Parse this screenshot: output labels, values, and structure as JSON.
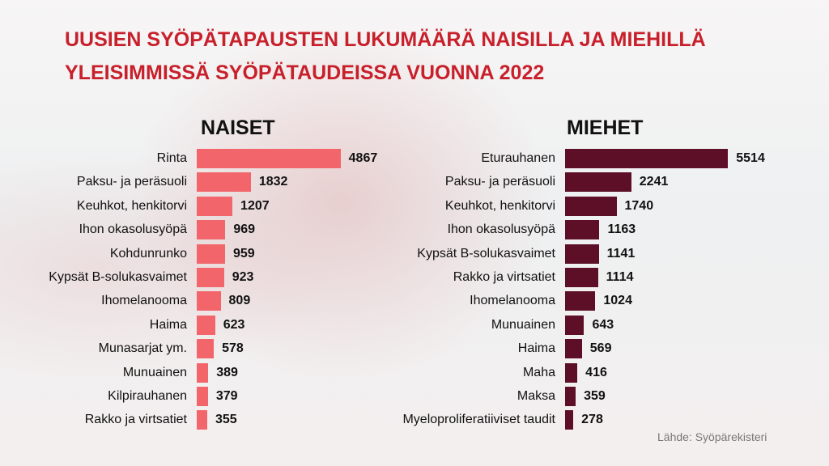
{
  "title": [
    "UUSIEN SYÖPÄTAPAUSTEN LUKUMÄÄRÄ NAISILLA JA MIEHILLÄ",
    "YLEISIMMISSÄ SYÖPÄTAUDEISSA VUONNA 2022"
  ],
  "source": "Lähde: Syöpärekisteri",
  "chart_data": [
    {
      "type": "bar",
      "orientation": "horizontal",
      "title": "NAISET",
      "color": "#f2666b",
      "categories": [
        "Rinta",
        "Paksu- ja peräsuoli",
        "Keuhkot, henkitorvi",
        "Ihon okasolusyöpä",
        "Kohdunrunko",
        "Kypsät B-solukasvaimet",
        "Ihomelanooma",
        "Haima",
        "Munasarjat ym.",
        "Munuainen",
        "Kilpirauhanen",
        "Rakko ja virtsatiet"
      ],
      "values": [
        4867,
        1832,
        1207,
        969,
        959,
        923,
        809,
        623,
        578,
        389,
        379,
        355
      ]
    },
    {
      "type": "bar",
      "orientation": "horizontal",
      "title": "MIEHET",
      "color": "#5c0f27",
      "categories": [
        "Eturauhanen",
        "Paksu- ja peräsuoli",
        "Keuhkot, henkitorvi",
        "Ihon okasolusyöpä",
        "Kypsät B-solukasvaimet",
        "Rakko ja virtsatiet",
        "Ihomelanooma",
        "Munuainen",
        "Haima",
        "Maha",
        "Maksa",
        "Myeloproliferatiiviset taudit"
      ],
      "values": [
        5514,
        2241,
        1740,
        1163,
        1141,
        1114,
        1024,
        643,
        569,
        416,
        359,
        278
      ]
    }
  ]
}
